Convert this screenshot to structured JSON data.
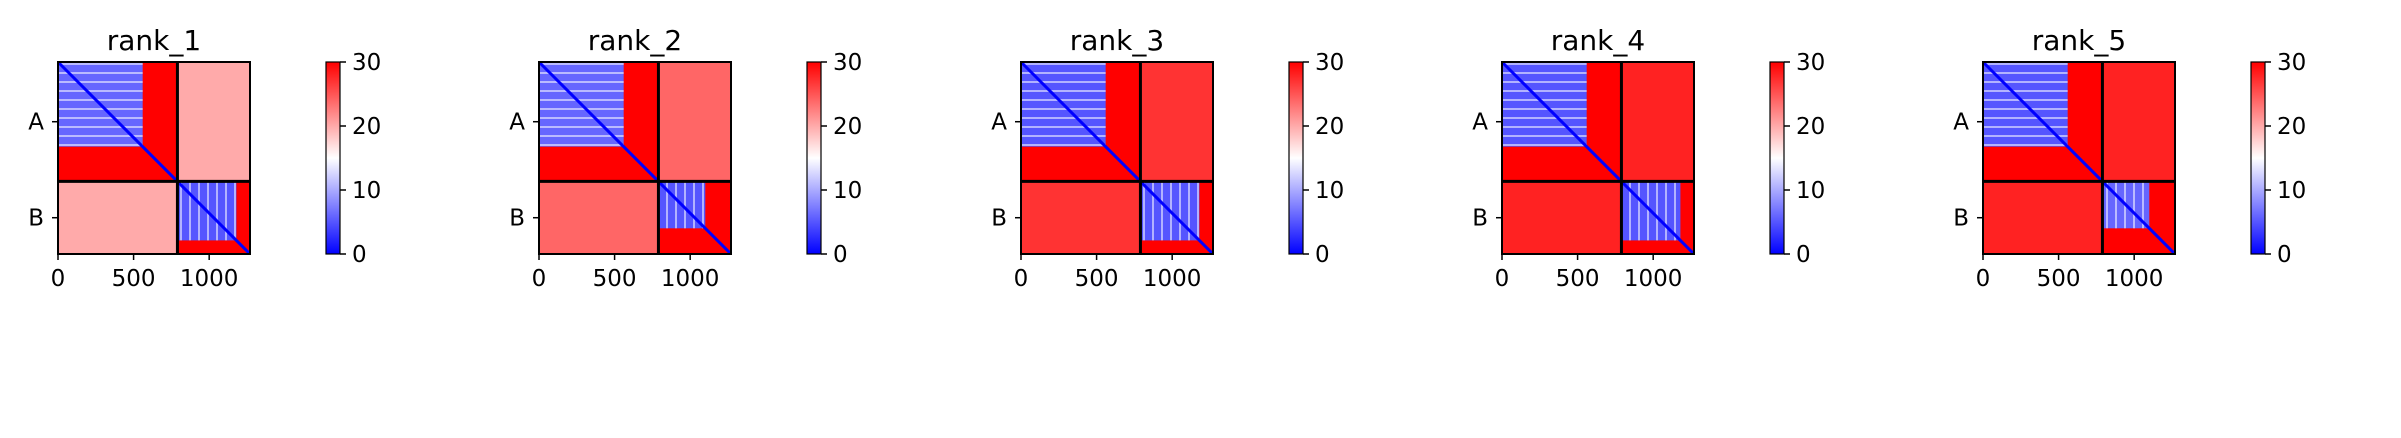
{
  "chart_data": {
    "type": "heatmap",
    "colormap": [
      "#0000ff",
      "#ffffff",
      "#ff0000"
    ],
    "colorbar": {
      "range": [
        0,
        30
      ],
      "ticks": [
        "0",
        "10",
        "20",
        "30"
      ]
    },
    "xticks": [
      "0",
      "500",
      "1000"
    ],
    "xlim": [
      0,
      1270
    ],
    "chains": [
      {
        "label": "A",
        "start": 0,
        "end": 790
      },
      {
        "label": "B",
        "start": 790,
        "end": 1270
      }
    ],
    "panels": [
      {
        "title": "rank_1",
        "intra_A": 6,
        "intra_B": 5,
        "inter": 20,
        "A_domain_end": 560,
        "B_domain_end": 1180
      },
      {
        "title": "rank_2",
        "intra_A": 6,
        "intra_B": 5,
        "inter": 24,
        "A_domain_end": 560,
        "B_domain_end": 1100
      },
      {
        "title": "rank_3",
        "intra_A": 5,
        "intra_B": 5,
        "inter": 27,
        "A_domain_end": 560,
        "B_domain_end": 1180
      },
      {
        "title": "rank_4",
        "intra_A": 5,
        "intra_B": 5,
        "inter": 28,
        "A_domain_end": 560,
        "B_domain_end": 1180
      },
      {
        "title": "rank_5",
        "intra_A": 5,
        "intra_B": 6,
        "inter": 28,
        "A_domain_end": 560,
        "B_domain_end": 1100
      }
    ]
  }
}
